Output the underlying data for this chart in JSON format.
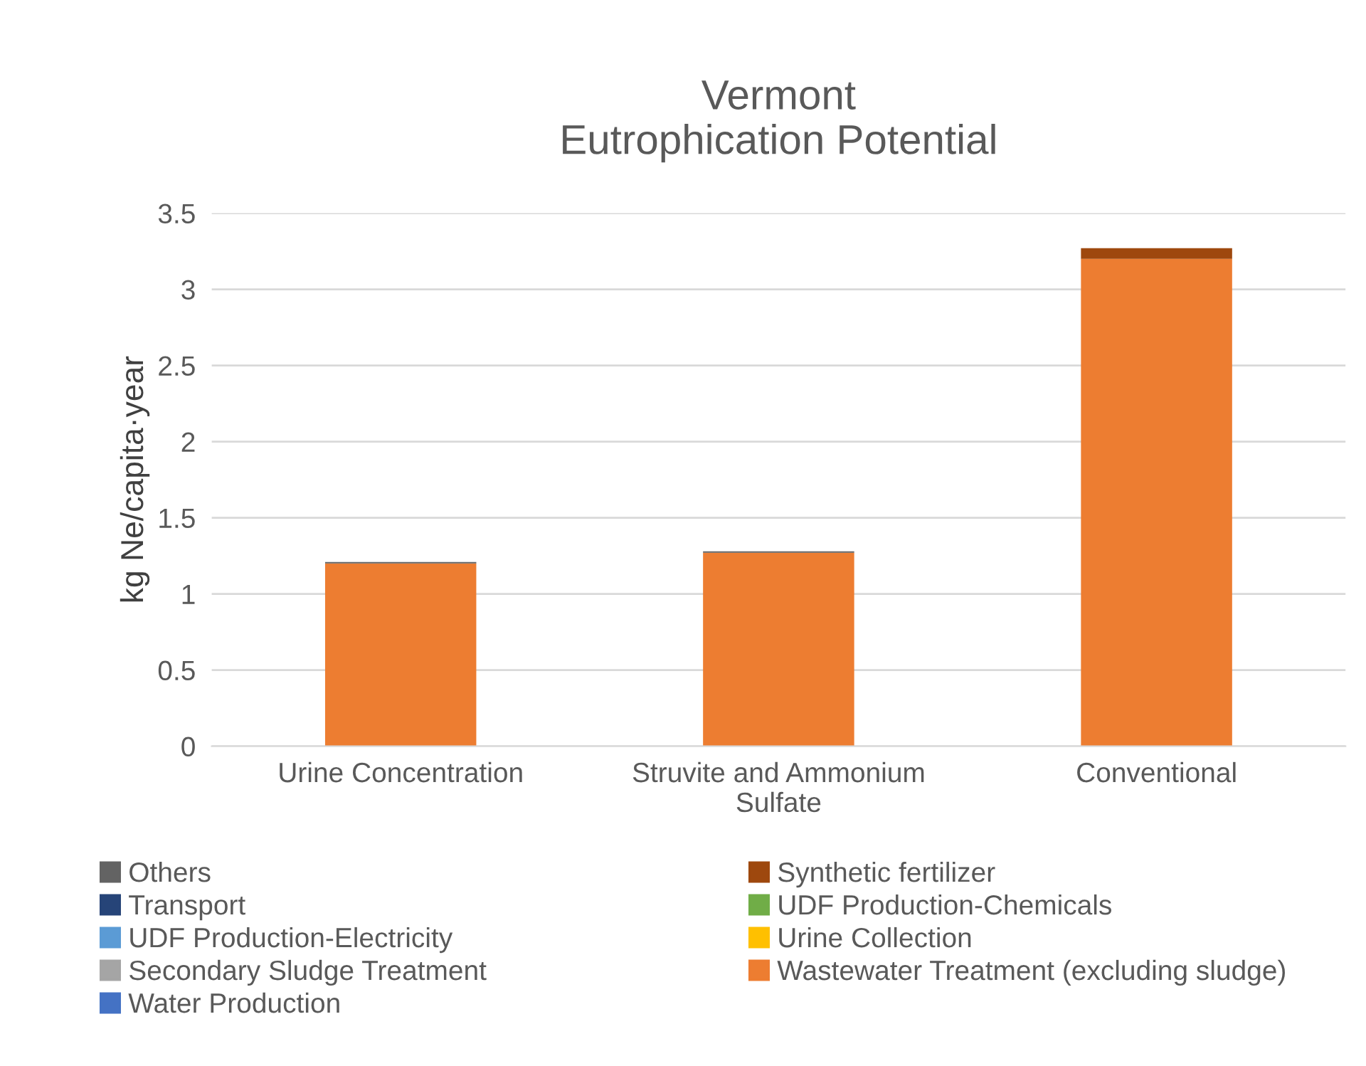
{
  "chart_data": {
    "type": "bar",
    "stacked": true,
    "title": "Vermont\nEutrophication Potential",
    "ylabel": "kg Ne/capita·year",
    "categories": [
      "Urine Concentration",
      "Struvite and Ammonium\nSulfate",
      "Conventional"
    ],
    "series": [
      {
        "name": "Water Production",
        "color": "#4472c4",
        "values": [
          0,
          0,
          0
        ]
      },
      {
        "name": "Wastewater Treatment (excluding sludge)",
        "color": "#ed7d31",
        "values": [
          1.2,
          1.27,
          3.2
        ]
      },
      {
        "name": "Secondary Sludge Treatment",
        "color": "#a5a5a5",
        "values": [
          0,
          0,
          0
        ]
      },
      {
        "name": "Urine Collection",
        "color": "#ffc000",
        "values": [
          0,
          0,
          0
        ]
      },
      {
        "name": "UDF Production-Electricity",
        "color": "#5b9bd5",
        "values": [
          0,
          0,
          0
        ]
      },
      {
        "name": "UDF Production-Chemicals",
        "color": "#70ad47",
        "values": [
          0,
          0,
          0
        ]
      },
      {
        "name": "Transport",
        "color": "#264478",
        "values": [
          0,
          0,
          0
        ]
      },
      {
        "name": "Synthetic fertilizer",
        "color": "#9e480e",
        "values": [
          0,
          0,
          0.07
        ]
      },
      {
        "name": "Others",
        "color": "#636363",
        "values": [
          0.01,
          0.01,
          0
        ]
      }
    ],
    "ylim": [
      0,
      3.5
    ],
    "yticks": [
      0,
      0.5,
      1,
      1.5,
      2,
      2.5,
      3,
      3.5
    ],
    "grid": "y",
    "legend": "bottom"
  }
}
